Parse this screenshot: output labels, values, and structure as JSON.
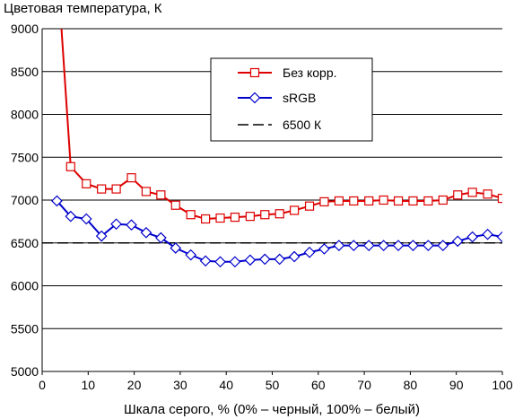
{
  "chart_data": {
    "type": "line",
    "title": "",
    "ylabel": "Цветовая температура, К",
    "xlabel": "Шкала серого, % (0% – черный, 100% – белый)",
    "xlim": [
      0,
      100
    ],
    "ylim": [
      5000,
      9000
    ],
    "x_ticks": [
      "0",
      "10",
      "20",
      "30",
      "40",
      "50",
      "60",
      "70",
      "80",
      "90",
      "100"
    ],
    "y_ticks": [
      "5000",
      "5500",
      "6000",
      "6500",
      "7000",
      "7500",
      "8000",
      "8500",
      "9000"
    ],
    "grid": "horizontal",
    "legend_position": "top-right",
    "series": [
      {
        "name": "Без корр.",
        "color": "#dd0000",
        "marker": "square",
        "x": [
          3.2,
          6.2,
          9.6,
          12.9,
          16.1,
          19.4,
          22.6,
          25.8,
          29.0,
          32.3,
          35.5,
          38.7,
          41.9,
          45.2,
          48.4,
          51.6,
          54.8,
          58.1,
          61.3,
          64.5,
          67.7,
          71.0,
          74.2,
          77.4,
          80.6,
          83.9,
          87.1,
          90.3,
          93.5,
          96.8,
          100
        ],
        "values": [
          9800,
          7390,
          7190,
          7130,
          7130,
          7260,
          7100,
          7060,
          6940,
          6830,
          6780,
          6790,
          6800,
          6810,
          6830,
          6840,
          6880,
          6930,
          6980,
          6990,
          6990,
          6990,
          7000,
          6990,
          6990,
          6990,
          7000,
          7060,
          7090,
          7070,
          7020
        ]
      },
      {
        "name": "sRGB",
        "color": "#0000cc",
        "marker": "diamond",
        "x": [
          3.2,
          6.2,
          9.6,
          12.9,
          16.1,
          19.4,
          22.6,
          25.8,
          29.0,
          32.3,
          35.5,
          38.7,
          41.9,
          45.2,
          48.4,
          51.6,
          54.8,
          58.1,
          61.3,
          64.5,
          67.7,
          71.0,
          74.2,
          77.4,
          80.6,
          83.9,
          87.1,
          90.3,
          93.5,
          96.8,
          100
        ],
        "values": [
          6990,
          6810,
          6780,
          6580,
          6720,
          6710,
          6620,
          6560,
          6440,
          6360,
          6290,
          6280,
          6280,
          6300,
          6310,
          6310,
          6340,
          6390,
          6430,
          6470,
          6470,
          6470,
          6470,
          6470,
          6470,
          6470,
          6470,
          6520,
          6570,
          6600,
          6570
        ]
      },
      {
        "name": "6500 К",
        "color": "#000000",
        "style": "dashed",
        "x": [
          0,
          100
        ],
        "values": [
          6500,
          6500
        ]
      }
    ]
  }
}
